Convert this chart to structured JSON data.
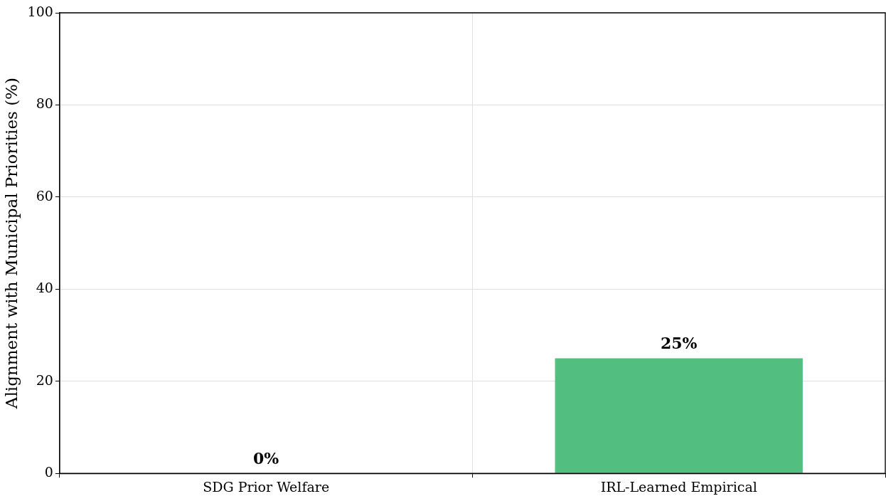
{
  "chart_data": {
    "type": "bar",
    "ylabel": "Alignment with Municipal Priorities (%)",
    "categories": [
      "SDG Prior Welfare",
      "IRL-Learned Empirical"
    ],
    "values": [
      0,
      25
    ],
    "colors": [
      "#52be80",
      "#52be80"
    ],
    "value_labels": [
      "0%",
      "25%"
    ],
    "ylim": [
      0,
      100
    ],
    "yticks": [
      0,
      20,
      40,
      60,
      80,
      100
    ],
    "grid": true
  }
}
